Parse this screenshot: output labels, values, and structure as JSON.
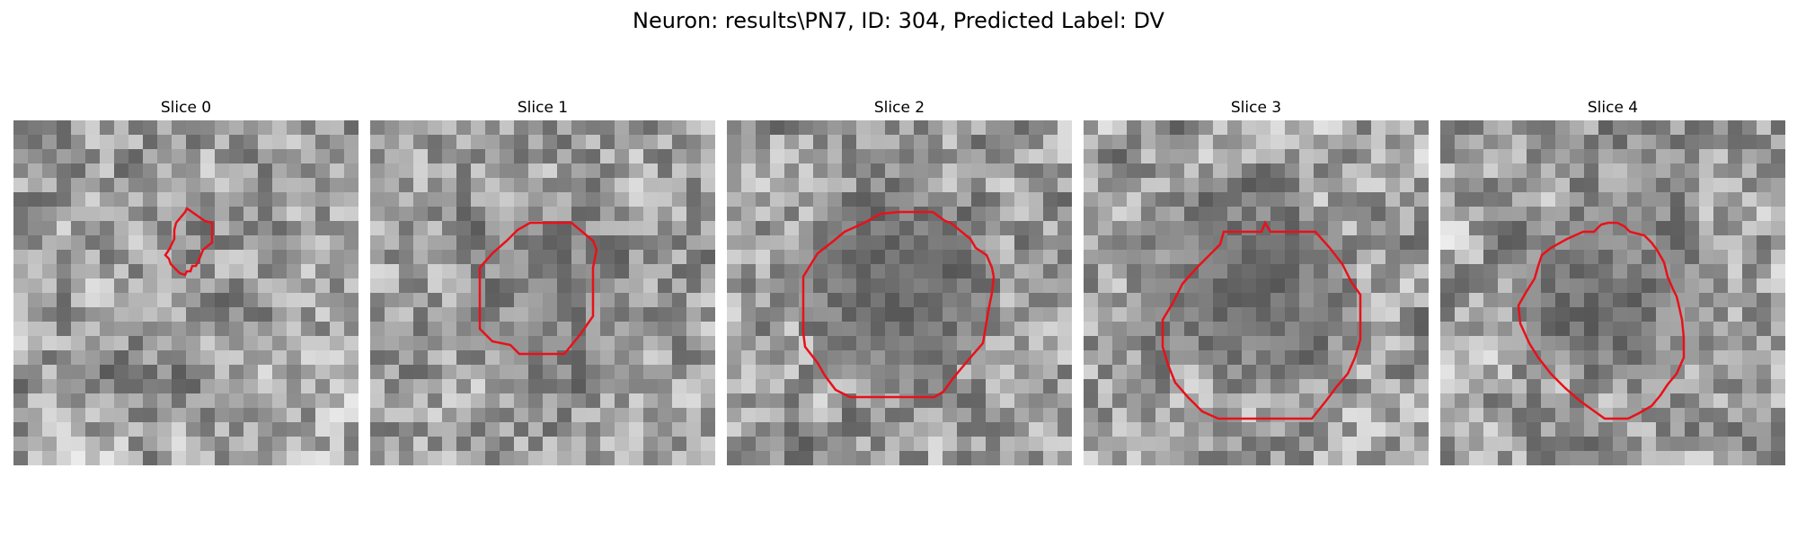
{
  "figure": {
    "title": "Neuron: results\\PN7, ID: 304, Predicted Label: DV"
  },
  "slices": [
    {
      "title": "Slice 0",
      "seed": 11,
      "blob": 0.1
    },
    {
      "title": "Slice 1",
      "seed": 23,
      "blob": 0.25
    },
    {
      "title": "Slice 2",
      "seed": 37,
      "blob": 0.62
    },
    {
      "title": "Slice 3",
      "seed": 41,
      "blob": 0.55
    },
    {
      "title": "Slice 4",
      "seed": 53,
      "blob": 0.45
    }
  ],
  "contour_color": "#e8111a",
  "image_colormap": "gray"
}
